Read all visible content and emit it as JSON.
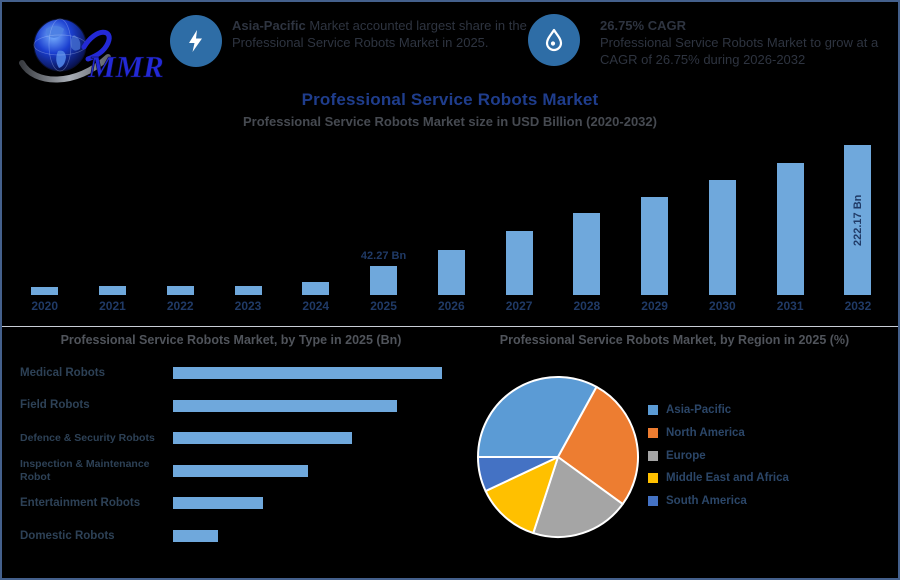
{
  "brand": {
    "logo_text": "MMR"
  },
  "header": {
    "callout1": {
      "icon": "lightning-icon",
      "bold": "Asia-Pacific",
      "text": " Market accounted largest share in the Professional Service Robots Market in 2025."
    },
    "callout2": {
      "icon": "droplet-icon",
      "bold": "26.75% CAGR",
      "text": "Professional Service Robots Market to grow at a CAGR of 26.75% during 2026-2032"
    }
  },
  "chart_data": [
    {
      "type": "bar",
      "title": "Professional Service Robots Market",
      "subtitle": "Professional Service Robots Market size in USD Billion (2020-2032)",
      "unit": "USD Billion",
      "categories": [
        "2020",
        "2021",
        "2022",
        "2023",
        "2024",
        "2025",
        "2026",
        "2027",
        "2028",
        "2029",
        "2030",
        "2031",
        "2032"
      ],
      "values": [
        12,
        13,
        13,
        13,
        19,
        42.27,
        67,
        95,
        121,
        145,
        170,
        195,
        222.17
      ],
      "labels": {
        "2025": "42.27 Bn",
        "2032": "222.17 Bn"
      },
      "bar_color": "#6FA8DC",
      "ylim": [
        0,
        230
      ],
      "grid": false
    },
    {
      "type": "bar",
      "orientation": "horizontal",
      "title": "Professional Service Robots Market, by Type in 2025 (Bn)",
      "categories": [
        "Medical Robots",
        "Field Robots",
        "Defence & Security Robots",
        "Inspection & Maintenance Robot",
        "Entertainment Robots",
        "Domestic Robots"
      ],
      "values": [
        12,
        10,
        8,
        6,
        4,
        2
      ],
      "bar_color": "#6FA8DC",
      "xlim": [
        0,
        13
      ],
      "grid": false
    },
    {
      "type": "pie",
      "title": "Professional Service Robots Market, by Region in 2025 (%)",
      "labels": [
        "Asia-Pacific",
        "North America",
        "Europe",
        "Middle East and Africa",
        "South America"
      ],
      "values": [
        33,
        27,
        20,
        13,
        7
      ],
      "colors": [
        "#5B9BD5",
        "#ED7D31",
        "#A5A5A5",
        "#FFC000",
        "#4472C4"
      ],
      "legend_position": "right"
    }
  ],
  "colors": {
    "background": "#000000",
    "border": "#44608C",
    "bar": "#6FA8DC",
    "title_blue": "#1F3D8C",
    "axis_label": "#203A66",
    "icon_circle": "#2E6DA6",
    "separator": "#C9CED6"
  }
}
